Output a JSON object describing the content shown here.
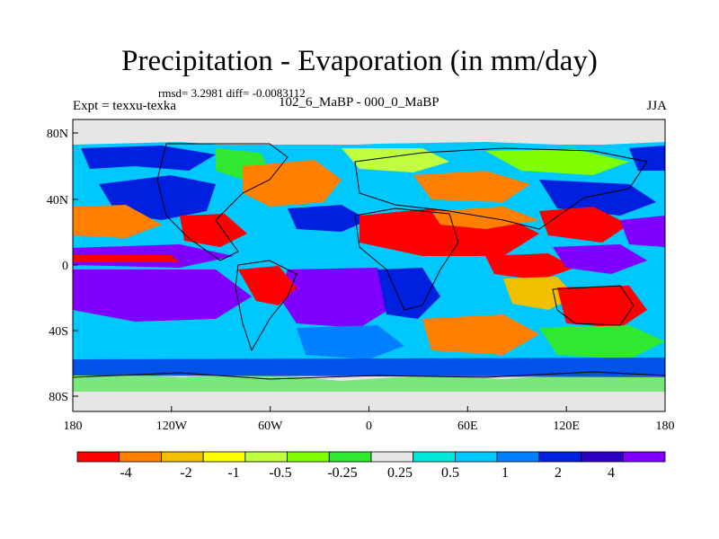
{
  "plot": {
    "title": "Precipitation - Evaporation (in mm/day)",
    "stats_text": "rmsd= 3.2981 diff= -0.0083112",
    "experiment": "Expt = texxu-texka",
    "subtitle": "102_6_MaBP - 000_0_MaBP",
    "season": "JJA"
  },
  "axes": {
    "x_ticks": [
      "180",
      "120W",
      "60W",
      "0",
      "60E",
      "120E",
      "180"
    ],
    "y_ticks": [
      "80N",
      "40N",
      "0",
      "40S",
      "80S"
    ]
  },
  "colorbar": {
    "colors": [
      "#ff0000",
      "#ff8000",
      "#f0c000",
      "#ffff00",
      "#c0ff40",
      "#80ff00",
      "#30e830",
      "#e6e6e6",
      "#00e8d8",
      "#00c8ff",
      "#0080ff",
      "#0020e0",
      "#3000c0",
      "#8000ff"
    ],
    "labels": [
      "-4",
      "-2",
      "-1",
      "-0.5",
      "-0.25",
      "0.25",
      "0.5",
      "1",
      "2",
      "4"
    ]
  }
}
